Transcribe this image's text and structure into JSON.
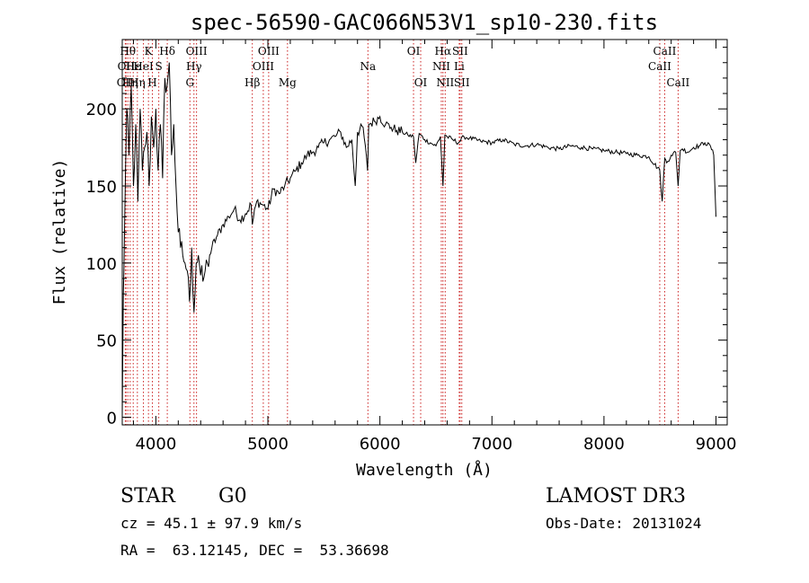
{
  "chart_data": {
    "type": "line",
    "title": "spec-56590-GAC066N53V1_sp10-230.fits",
    "xlabel": "Wavelength (Å)",
    "ylabel": "Flux (relative)",
    "xlim": [
      3700,
      9100
    ],
    "ylim": [
      -5,
      245
    ],
    "xticks": [
      4000,
      5000,
      6000,
      7000,
      8000,
      9000
    ],
    "xtick_labels": [
      "4000",
      "5000",
      "6000",
      "7000",
      "8000",
      "9000"
    ],
    "yticks": [
      0,
      50,
      100,
      150,
      200
    ],
    "ytick_labels": [
      "0",
      "50",
      "100",
      "150",
      "200"
    ],
    "series": [
      {
        "name": "flux",
        "x": [
          3700,
          3710,
          3720,
          3740,
          3760,
          3780,
          3800,
          3820,
          3840,
          3860,
          3880,
          3900,
          3920,
          3940,
          3960,
          3980,
          4000,
          4020,
          4040,
          4060,
          4080,
          4100,
          4120,
          4140,
          4160,
          4180,
          4200,
          4220,
          4240,
          4260,
          4280,
          4300,
          4320,
          4340,
          4360,
          4380,
          4400,
          4420,
          4440,
          4460,
          4480,
          4500,
          4550,
          4600,
          4650,
          4700,
          4750,
          4800,
          4850,
          4861,
          4900,
          4950,
          5000,
          5050,
          5100,
          5150,
          5200,
          5250,
          5300,
          5350,
          5400,
          5450,
          5500,
          5550,
          5600,
          5650,
          5700,
          5750,
          5780,
          5800,
          5850,
          5890,
          5900,
          5950,
          6000,
          6050,
          6100,
          6150,
          6200,
          6250,
          6300,
          6320,
          6350,
          6400,
          6450,
          6500,
          6540,
          6563,
          6580,
          6600,
          6650,
          6700,
          6750,
          6800,
          6900,
          7000,
          7100,
          7200,
          7300,
          7400,
          7500,
          7600,
          7700,
          7800,
          7900,
          8000,
          8100,
          8200,
          8300,
          8400,
          8498,
          8520,
          8542,
          8560,
          8600,
          8640,
          8662,
          8680,
          8700,
          8750,
          8800,
          8850,
          8900,
          8950,
          8980,
          9000
        ],
        "values": [
          0,
          80,
          120,
          200,
          170,
          215,
          150,
          190,
          140,
          200,
          160,
          175,
          185,
          150,
          195,
          175,
          200,
          160,
          190,
          155,
          220,
          215,
          230,
          170,
          190,
          150,
          120,
          110,
          105,
          100,
          95,
          75,
          110,
          68,
          100,
          105,
          92,
          88,
          95,
          100,
          105,
          110,
          118,
          125,
          130,
          135,
          128,
          132,
          138,
          125,
          140,
          138,
          135,
          148,
          145,
          150,
          155,
          160,
          165,
          170,
          172,
          175,
          178,
          180,
          182,
          185,
          175,
          180,
          150,
          185,
          188,
          160,
          190,
          192,
          195,
          190,
          188,
          186,
          185,
          183,
          182,
          165,
          184,
          180,
          178,
          176,
          182,
          150,
          183,
          182,
          180,
          178,
          182,
          181,
          179,
          178,
          180,
          177,
          176,
          177,
          175,
          174,
          176,
          175,
          174,
          173,
          172,
          171,
          170,
          169,
          160,
          140,
          168,
          165,
          170,
          172,
          150,
          173,
          174,
          172,
          175,
          176,
          178,
          176,
          170,
          130
        ]
      }
    ],
    "lines": [
      {
        "x": 3727,
        "label": "OII",
        "row": 3
      },
      {
        "x": 3734,
        "label": "OII",
        "row": 2
      },
      {
        "x": 3750,
        "label": "Hθ",
        "row": 1
      },
      {
        "x": 3771,
        "label": "Hη",
        "row": 3
      },
      {
        "x": 3798,
        "label": "Hε",
        "row": 2
      },
      {
        "x": 3835,
        "label": "Hη",
        "row": 3
      },
      {
        "x": 3889,
        "label": "HeI",
        "row": 2
      },
      {
        "x": 3934,
        "label": "K",
        "row": 1
      },
      {
        "x": 3969,
        "label": "H",
        "row": 3
      },
      {
        "x": 4026,
        "label": "S",
        "row": 2
      },
      {
        "x": 4102,
        "label": "Hδ",
        "row": 1
      },
      {
        "x": 4304,
        "label": "G",
        "row": 3
      },
      {
        "x": 4340,
        "label": "Hγ",
        "row": 2
      },
      {
        "x": 4363,
        "label": "OIII",
        "row": 1
      },
      {
        "x": 4861,
        "label": "Hβ",
        "row": 3
      },
      {
        "x": 4959,
        "label": "OIII",
        "row": 2
      },
      {
        "x": 5007,
        "label": "OIII",
        "row": 1
      },
      {
        "x": 5175,
        "label": "Mg",
        "row": 3
      },
      {
        "x": 5893,
        "label": "Na",
        "row": 2
      },
      {
        "x": 6300,
        "label": "OI",
        "row": 1
      },
      {
        "x": 6364,
        "label": "OI",
        "row": 3
      },
      {
        "x": 6548,
        "label": "NII",
        "row": 2
      },
      {
        "x": 6563,
        "label": "Hα",
        "row": 1
      },
      {
        "x": 6583,
        "label": "NII",
        "row": 3
      },
      {
        "x": 6708,
        "label": "Li",
        "row": 2
      },
      {
        "x": 6716,
        "label": "SII",
        "row": 1
      },
      {
        "x": 6731,
        "label": "SII",
        "row": 3
      },
      {
        "x": 8498,
        "label": "CaII",
        "row": 2
      },
      {
        "x": 8542,
        "label": "CaII",
        "row": 1
      },
      {
        "x": 8662,
        "label": "CaII",
        "row": 3
      }
    ]
  },
  "info": {
    "object_class": "STAR",
    "subclass": "G0",
    "survey": "LAMOST DR3",
    "redshift": "cz = 45.1 ± 97.9 km/s",
    "obs_date": "Obs-Date: 20131024",
    "coords": "RA =  63.12145, DEC =  53.36698"
  }
}
